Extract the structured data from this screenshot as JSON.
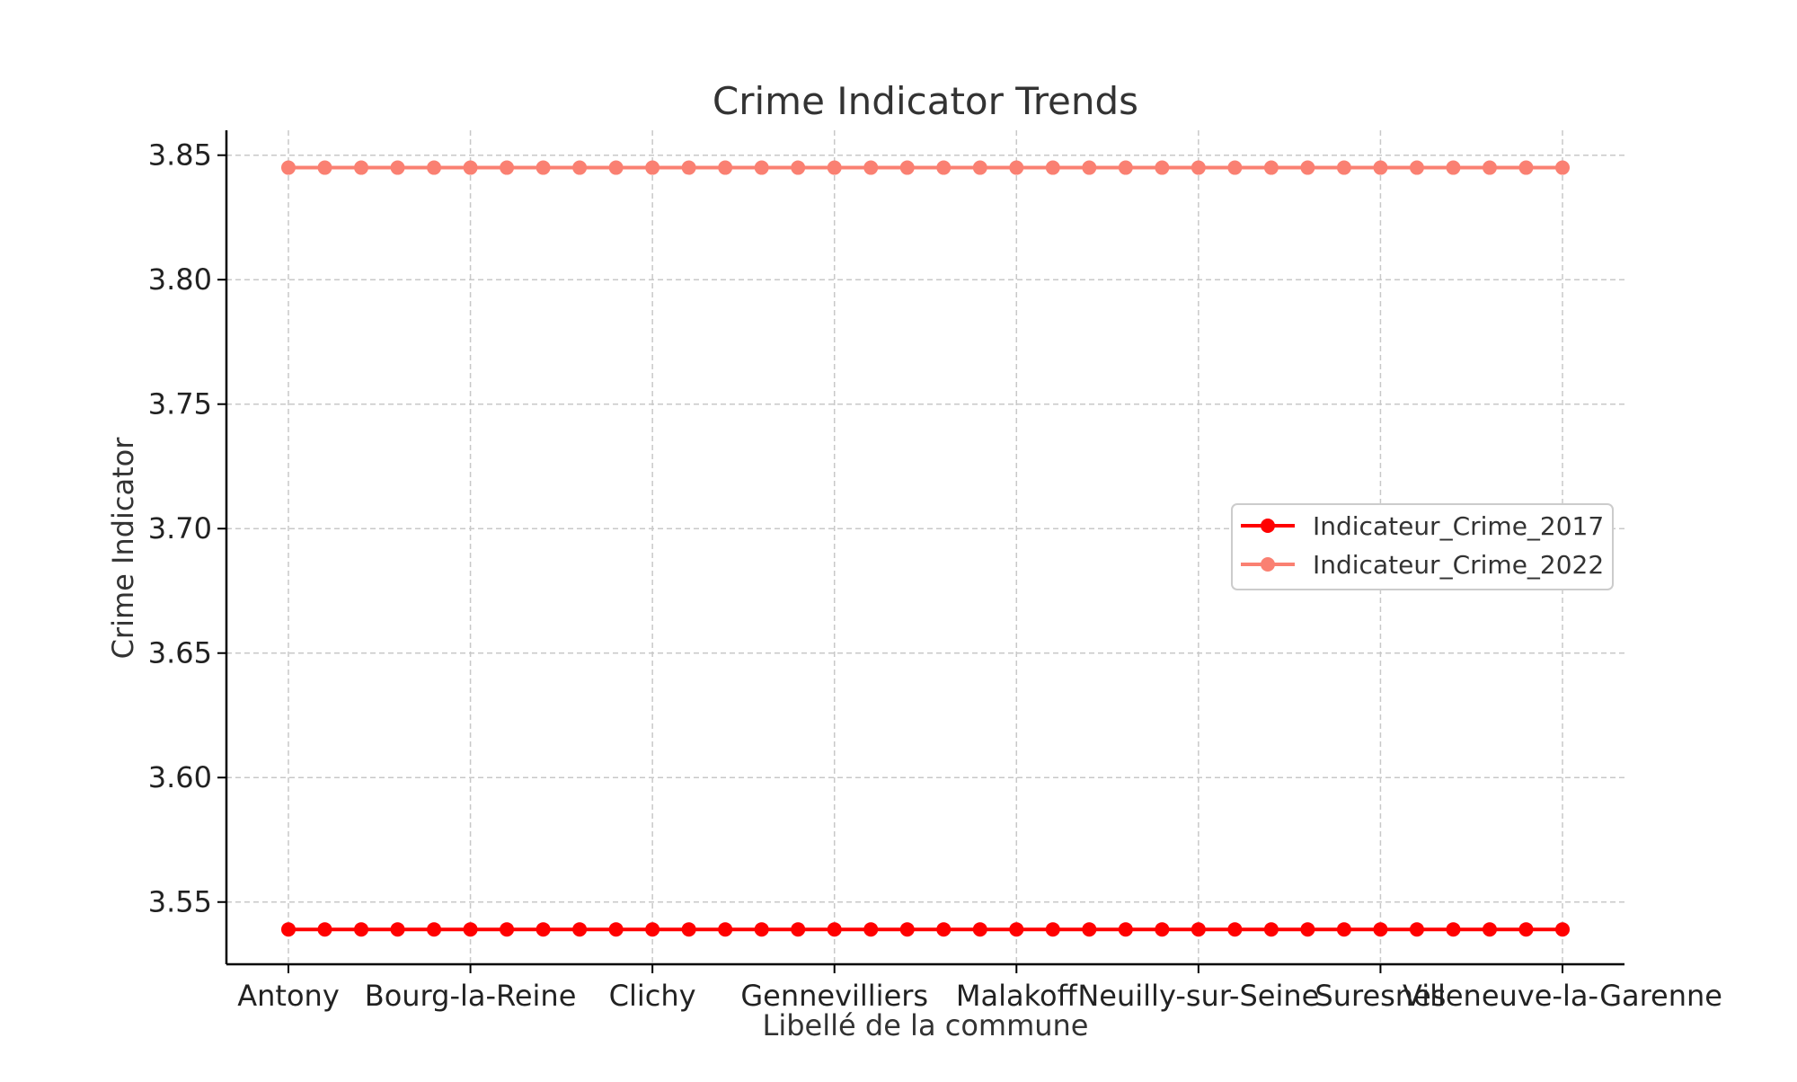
{
  "chart_data": {
    "type": "line",
    "title": "Crime Indicator Trends",
    "xlabel": "Libellé de la commune",
    "ylabel": "Crime Indicator",
    "categories": [
      "Antony",
      "Bourg-la-Reine",
      "Clichy",
      "Gennevilliers",
      "Malakoff",
      "Neuilly-sur-Seine",
      "Suresnes",
      "Villeneuve-la-Garenne"
    ],
    "num_points": 36,
    "ylim": [
      3.525,
      3.86
    ],
    "yticks": [
      "3.55",
      "3.60",
      "3.65",
      "3.70",
      "3.75",
      "3.80",
      "3.85"
    ],
    "grid": true,
    "legend_position": "center-right",
    "series": [
      {
        "name": "Indicateur_Crime_2017",
        "value": 3.539,
        "color": "#ff0000"
      },
      {
        "name": "Indicateur_Crime_2022",
        "value": 3.845,
        "color": "#fa8072"
      }
    ]
  }
}
